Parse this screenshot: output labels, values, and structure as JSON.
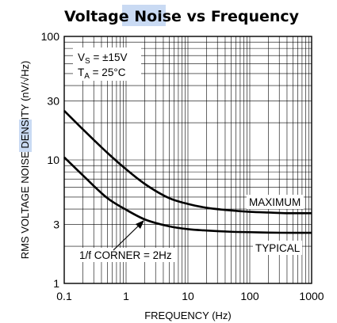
{
  "chart_data": {
    "type": "line",
    "title": "Voltage Noise vs Frequency",
    "title_highlight": "Noise",
    "xlabel": "FREQUENCY (Hz)",
    "ylabel": "RMS VOLTAGE NOISE DENSITY (nV/√Hz)",
    "ylabel_highlight": "NOISE",
    "x_scale": "log",
    "y_scale": "log",
    "xlim": [
      0.1,
      1000
    ],
    "ylim": [
      1,
      100
    ],
    "x_ticks": [
      {
        "value": 0.1,
        "label": "0.1"
      },
      {
        "value": 1,
        "label": "1"
      },
      {
        "value": 10,
        "label": "10"
      },
      {
        "value": 100,
        "label": "100"
      },
      {
        "value": 1000,
        "label": "1000"
      }
    ],
    "y_ticks": [
      {
        "value": 1,
        "label": "1"
      },
      {
        "value": 3,
        "label": "3"
      },
      {
        "value": 10,
        "label": "10"
      },
      {
        "value": 30,
        "label": "30"
      },
      {
        "value": 100,
        "label": "100"
      }
    ],
    "grid": true,
    "conditions": [
      "VS = ±15V",
      "TA = 25°C"
    ],
    "annotation": "1/f CORNER = 2Hz",
    "series": [
      {
        "name": "MAXIMUM",
        "x": [
          0.1,
          0.2,
          0.5,
          1,
          2,
          5,
          10,
          20,
          50,
          100,
          200,
          500,
          1000
        ],
        "y": [
          25,
          17.7,
          11.4,
          8.4,
          6.4,
          4.9,
          4.4,
          4.1,
          3.9,
          3.8,
          3.75,
          3.7,
          3.7
        ]
      },
      {
        "name": "TYPICAL",
        "x": [
          0.1,
          0.2,
          0.5,
          1,
          2,
          5,
          10,
          20,
          50,
          100,
          200,
          500,
          1000
        ],
        "y": [
          10.5,
          7.5,
          4.9,
          3.95,
          3.3,
          2.9,
          2.75,
          2.68,
          2.62,
          2.6,
          2.58,
          2.57,
          2.57
        ]
      }
    ]
  }
}
